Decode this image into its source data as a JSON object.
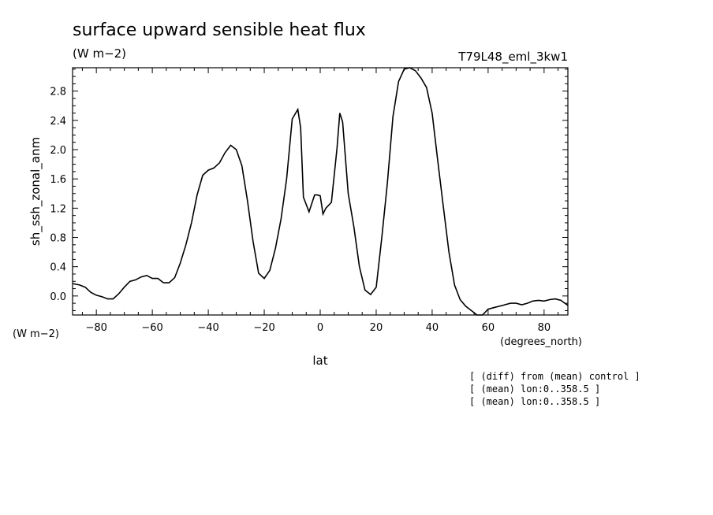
{
  "chart_data": {
    "type": "line",
    "title": "surface upward sensible heat flux",
    "units": "(W m−2)",
    "run_label": "T79L48_eml_3kw1",
    "ylabel": "sh_ssh_zonal_anm",
    "y_unit_label": "(W m−2)",
    "xlabel": "lat",
    "x_unit_label": "(degrees_north)",
    "xlim": [
      -88.5,
      88.5
    ],
    "ylim": [
      -0.26,
      3.12
    ],
    "xticks": [
      -80,
      -60,
      -40,
      -20,
      0,
      20,
      40,
      60,
      80
    ],
    "xtick_labels": [
      "−80",
      "−60",
      "−40",
      "−20",
      "0",
      "20",
      "40",
      "60",
      "80"
    ],
    "yticks": [
      0.0,
      0.4,
      0.8,
      1.2,
      1.6,
      2.0,
      2.4,
      2.8
    ],
    "ytick_labels": [
      "0.0",
      "0.4",
      "0.8",
      "1.2",
      "1.6",
      "2.0",
      "2.4",
      "2.8"
    ],
    "notes": [
      "[ (diff) from (mean) control ]",
      "[ (mean) lon:0..358.5 ]",
      "[ (mean) lon:0..358.5 ]"
    ],
    "series": [
      {
        "x": [
          -88.5,
          -86,
          -84,
          -82,
          -80,
          -78,
          -76,
          -74,
          -72,
          -70,
          -68,
          -66,
          -64,
          -62,
          -60,
          -58,
          -56,
          -54,
          -52,
          -50,
          -48,
          -46,
          -44,
          -42,
          -40,
          -38,
          -36,
          -34,
          -32,
          -31,
          -30,
          -28,
          -26,
          -24,
          -22,
          -20,
          -18,
          -16,
          -14,
          -12,
          -10,
          -8,
          -7,
          -6,
          -4,
          -2,
          -1,
          0,
          1,
          2,
          4,
          6,
          7,
          8,
          10,
          12,
          14,
          16,
          18,
          20,
          22,
          24,
          26,
          28,
          30,
          32,
          33,
          34,
          36,
          38,
          40,
          42,
          44,
          46,
          48,
          50,
          52,
          54,
          56,
          58,
          60,
          62,
          64,
          66,
          68,
          70,
          72,
          74,
          76,
          78,
          80,
          82,
          84,
          86,
          88.5
        ],
        "y": [
          0.17,
          0.15,
          0.12,
          0.05,
          0.01,
          -0.01,
          -0.04,
          -0.04,
          0.03,
          0.12,
          0.2,
          0.22,
          0.26,
          0.28,
          0.24,
          0.24,
          0.18,
          0.18,
          0.25,
          0.45,
          0.7,
          1.0,
          1.38,
          1.65,
          1.72,
          1.75,
          1.82,
          1.96,
          2.06,
          2.03,
          2.0,
          1.78,
          1.3,
          0.75,
          0.31,
          0.24,
          0.35,
          0.65,
          1.05,
          1.6,
          2.42,
          2.55,
          2.3,
          1.35,
          1.15,
          1.38,
          1.38,
          1.37,
          1.12,
          1.2,
          1.28,
          2.02,
          2.5,
          2.38,
          1.4,
          0.95,
          0.4,
          0.08,
          0.02,
          0.12,
          0.8,
          1.55,
          2.45,
          2.93,
          3.1,
          3.12,
          3.1,
          3.08,
          2.98,
          2.85,
          2.5,
          1.85,
          1.22,
          0.6,
          0.15,
          -0.05,
          -0.14,
          -0.2,
          -0.26,
          -0.26,
          -0.18,
          -0.16,
          -0.14,
          -0.12,
          -0.1,
          -0.1,
          -0.12,
          -0.1,
          -0.07,
          -0.06,
          -0.07,
          -0.05,
          -0.04,
          -0.06,
          -0.13
        ]
      }
    ]
  }
}
